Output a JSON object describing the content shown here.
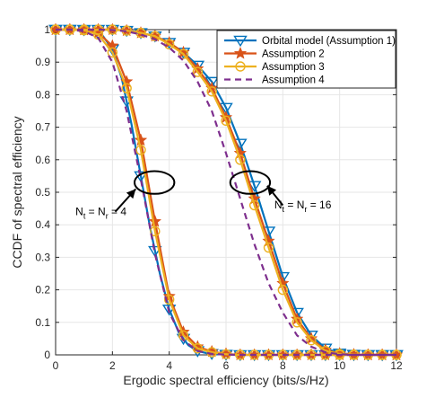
{
  "chart_data": {
    "type": "line",
    "xlabel": "Ergodic spectral efficiency (bits/s/Hz)",
    "ylabel": "CCDF of spectral efficiency",
    "xlim": [
      0,
      12
    ],
    "ylim": [
      0,
      1
    ],
    "xticks": [
      0,
      2,
      4,
      6,
      8,
      10,
      12
    ],
    "yticks": [
      0,
      0.1,
      0.2,
      0.3,
      0.4,
      0.5,
      0.6,
      0.7,
      0.8,
      0.9,
      1
    ],
    "grid": true,
    "legend_position": "top-right",
    "series": [
      {
        "name": "Orbital model (Assumption 1)",
        "color": "#0072BD",
        "marker": "triangle-down",
        "groups": [
          {
            "x": [
              0,
              0.33,
              0.67,
              1,
              1.33,
              1.67,
              2,
              2.33,
              2.67,
              3,
              3.33,
              3.67,
              4,
              4.33,
              4.67,
              5,
              5.33,
              5.67,
              6,
              6.33,
              6.67,
              7,
              7.33,
              7.67,
              8,
              8.33,
              8.67,
              9,
              9.33,
              9.67,
              10,
              10.33,
              10.67,
              11,
              11.33,
              11.67,
              12
            ],
            "y": [
              1,
              1,
              1,
              0.999,
              0.995,
              0.98,
              0.94,
              0.85,
              0.71,
              0.55,
              0.39,
              0.25,
              0.14,
              0.07,
              0.03,
              0.012,
              0.005,
              0.002,
              0.001,
              0,
              0,
              0,
              0,
              0,
              0,
              0,
              0,
              0,
              0,
              0,
              0,
              0,
              0,
              0,
              0,
              0,
              0
            ],
            "marker_x": [
              0,
              0.5,
              1,
              1.5,
              2,
              2.5,
              3,
              3.5,
              4,
              4.5,
              5,
              5.5,
              6,
              6.5,
              7,
              7.5,
              8,
              8.5,
              9,
              9.5,
              10,
              10.5,
              11,
              11.5,
              12
            ]
          },
          {
            "x": [
              0,
              0.5,
              1,
              1.5,
              2,
              2.5,
              3,
              3.5,
              4,
              4.5,
              5,
              5.5,
              6,
              6.5,
              7,
              7.5,
              8,
              8.5,
              9,
              9.5,
              10,
              10.5,
              11,
              11.5,
              12
            ],
            "y": [
              1,
              1,
              1,
              1,
              1,
              0.997,
              0.99,
              0.98,
              0.96,
              0.93,
              0.89,
              0.84,
              0.76,
              0.65,
              0.52,
              0.38,
              0.24,
              0.13,
              0.06,
              0.02,
              0.005,
              0.001,
              0,
              0,
              0
            ],
            "marker_x": [
              0,
              0.5,
              1,
              1.5,
              2,
              2.5,
              3,
              3.5,
              4,
              4.5,
              5,
              5.5,
              6,
              6.5,
              7,
              7.5,
              8,
              8.5,
              9,
              9.5,
              10,
              10.5,
              11,
              11.5,
              12
            ]
          }
        ]
      },
      {
        "name": "Assumption 2",
        "color": "#D95319",
        "marker": "star",
        "groups": [
          {
            "x": [
              0,
              0.5,
              1,
              1.5,
              2,
              2.5,
              3,
              3.5,
              4,
              4.5,
              5,
              5.5,
              6,
              6.5,
              7,
              7.5,
              8,
              8.5,
              9,
              9.5,
              10,
              10.5,
              11,
              11.5,
              12
            ],
            "y": [
              1,
              1,
              0.999,
              0.99,
              0.95,
              0.84,
              0.66,
              0.41,
              0.18,
              0.07,
              0.025,
              0.01,
              0.003,
              0,
              0,
              0,
              0,
              0,
              0,
              0,
              0,
              0,
              0,
              0,
              0
            ],
            "marker_x": [
              0,
              0.5,
              1,
              1.5,
              2,
              2.5,
              3,
              3.5,
              4,
              4.5,
              5,
              5.5,
              6,
              6.5,
              7,
              7.5,
              8,
              8.5,
              9,
              9.5,
              10,
              10.5,
              11,
              11.5,
              12
            ]
          },
          {
            "x": [
              0,
              0.5,
              1,
              1.5,
              2,
              2.5,
              3,
              3.5,
              4,
              4.5,
              5,
              5.5,
              6,
              6.5,
              7,
              7.5,
              8,
              8.5,
              9,
              9.5,
              10,
              10.5,
              11,
              11.5,
              12
            ],
            "y": [
              1,
              1,
              1,
              1,
              1,
              0.997,
              0.99,
              0.98,
              0.96,
              0.93,
              0.88,
              0.82,
              0.73,
              0.62,
              0.48,
              0.35,
              0.22,
              0.11,
              0.05,
              0.015,
              0.004,
              0.001,
              0,
              0,
              0
            ],
            "marker_x": [
              0,
              0.5,
              1,
              1.5,
              2,
              2.5,
              3,
              3.5,
              4,
              4.5,
              5,
              5.5,
              6,
              6.5,
              7,
              7.5,
              8,
              8.5,
              9,
              9.5,
              10,
              10.5,
              11,
              11.5,
              12
            ]
          }
        ]
      },
      {
        "name": "Assumption 3",
        "color": "#EDB120",
        "marker": "circle",
        "groups": [
          {
            "x": [
              0,
              0.5,
              1,
              1.5,
              2,
              2.5,
              3,
              3.5,
              4,
              4.5,
              5,
              5.5,
              6,
              6.5,
              7,
              7.5,
              8,
              8.5,
              9,
              9.5,
              10,
              10.5,
              11,
              11.5,
              12
            ],
            "y": [
              1,
              1,
              0.998,
              0.985,
              0.93,
              0.82,
              0.63,
              0.38,
              0.17,
              0.06,
              0.02,
              0.008,
              0.002,
              0,
              0,
              0,
              0,
              0,
              0,
              0,
              0,
              0,
              0,
              0,
              0
            ],
            "marker_x": [
              0,
              0.5,
              1,
              1.5,
              2,
              2.5,
              3,
              3.5,
              4,
              4.5,
              5,
              5.5,
              6,
              6.5,
              7,
              7.5,
              8,
              8.5,
              9,
              9.5,
              10,
              10.5,
              11,
              11.5,
              12
            ]
          },
          {
            "x": [
              0,
              0.5,
              1,
              1.5,
              2,
              2.5,
              3,
              3.5,
              4,
              4.5,
              5,
              5.5,
              6,
              6.5,
              7,
              7.5,
              8,
              8.5,
              9,
              9.5,
              10,
              10.5,
              11,
              11.5,
              12
            ],
            "y": [
              1,
              1,
              1,
              1,
              1,
              0.997,
              0.99,
              0.98,
              0.955,
              0.925,
              0.87,
              0.81,
              0.72,
              0.6,
              0.46,
              0.33,
              0.2,
              0.1,
              0.045,
              0.012,
              0.003,
              0.001,
              0,
              0,
              0
            ],
            "marker_x": [
              0,
              0.5,
              1,
              1.5,
              2,
              2.5,
              3,
              3.5,
              4,
              4.5,
              5,
              5.5,
              6,
              6.5,
              7,
              7.5,
              8,
              8.5,
              9,
              9.5,
              10,
              10.5,
              11,
              11.5,
              12
            ]
          }
        ]
      },
      {
        "name": "Assumption 4",
        "color": "#7E2F8E",
        "marker": "none",
        "dash": "dashed",
        "groups": [
          {
            "x": [
              0,
              0.5,
              1,
              1.5,
              2,
              2.5,
              3,
              3.5,
              4,
              4.5,
              5,
              5.5,
              6,
              6.5,
              7,
              7.5,
              8,
              8.5,
              9,
              9.5,
              10,
              10.5,
              11,
              11.5,
              12
            ],
            "y": [
              1,
              1,
              0.995,
              0.975,
              0.9,
              0.75,
              0.54,
              0.31,
              0.13,
              0.045,
              0.012,
              0.003,
              0.001,
              0,
              0,
              0,
              0,
              0,
              0,
              0,
              0,
              0,
              0,
              0,
              0
            ],
            "marker_x": []
          },
          {
            "x": [
              0,
              0.5,
              1,
              1.5,
              2,
              2.5,
              3,
              3.5,
              4,
              4.5,
              5,
              5.5,
              6,
              6.5,
              7,
              7.5,
              8,
              8.5,
              9,
              9.5,
              10,
              10.5,
              11,
              11.5,
              12
            ],
            "y": [
              1,
              1,
              1,
              1,
              0.999,
              0.995,
              0.985,
              0.97,
              0.945,
              0.905,
              0.84,
              0.75,
              0.62,
              0.48,
              0.34,
              0.22,
              0.13,
              0.06,
              0.025,
              0.008,
              0.002,
              0,
              0,
              0,
              0
            ],
            "marker_x": []
          }
        ]
      }
    ],
    "annotations": [
      {
        "text_main": "N",
        "sub1": "t",
        "mid": " = N",
        "sub2": "r",
        "tail": " = 4",
        "ellipse_center": [
          3.48,
          0.53
        ],
        "ellipse_radius": [
          0.7,
          0.035
        ],
        "arrow_from": [
          2.1,
          0.44
        ],
        "arrow_to": [
          2.82,
          0.51
        ],
        "label_at": [
          0.7,
          0.43
        ]
      },
      {
        "text_main": "N",
        "sub1": "t",
        "mid": " = N",
        "sub2": "r",
        "tail": " = 16",
        "ellipse_center": [
          6.85,
          0.53
        ],
        "ellipse_radius": [
          0.7,
          0.035
        ],
        "arrow_from": [
          8.0,
          0.46
        ],
        "arrow_to": [
          7.45,
          0.52
        ],
        "label_at": [
          7.7,
          0.45
        ]
      }
    ]
  }
}
